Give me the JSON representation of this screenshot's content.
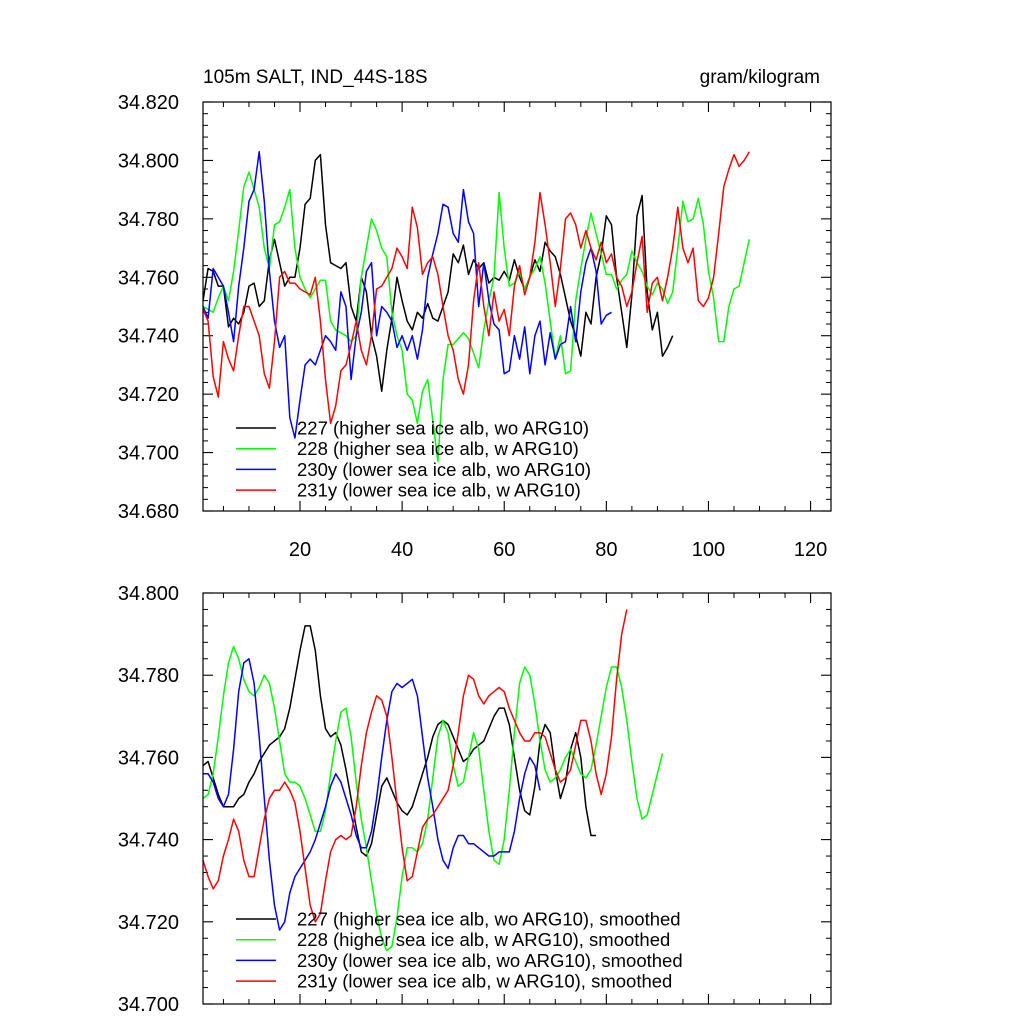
{
  "chart_data": [
    {
      "type": "line",
      "title": "105m SALT, IND_44S-18S",
      "units": "gram/kilogram",
      "xlim": [
        1,
        124
      ],
      "ylim": [
        34.68,
        34.82
      ],
      "xticks": [
        20,
        40,
        60,
        80,
        100,
        120
      ],
      "yticks": [
        34.68,
        34.7,
        34.72,
        34.74,
        34.76,
        34.78,
        34.8,
        34.82
      ],
      "x_tick_labels": [
        "20",
        "40",
        "60",
        "80",
        "100",
        "120"
      ],
      "y_tick_labels": [
        "34.680",
        "34.700",
        "34.720",
        "34.740",
        "34.760",
        "34.780",
        "34.800",
        "34.820"
      ],
      "series": [
        {
          "name": "227 (higher sea ice alb, wo ARG10)",
          "color": "#000000",
          "x_start": 1,
          "values": [
            34.752,
            34.763,
            34.762,
            34.757,
            34.757,
            34.743,
            34.746,
            34.744,
            34.748,
            34.757,
            34.758,
            34.75,
            34.752,
            34.766,
            34.773,
            34.765,
            34.757,
            34.76,
            34.76,
            34.77,
            34.785,
            34.787,
            34.8,
            34.802,
            34.778,
            34.765,
            34.764,
            34.763,
            34.765,
            34.75,
            34.745,
            34.76,
            34.755,
            34.74,
            34.733,
            34.721,
            34.735,
            34.746,
            34.76,
            34.752,
            34.745,
            34.742,
            34.748,
            34.746,
            34.751,
            34.746,
            34.745,
            34.75,
            34.755,
            34.768,
            34.765,
            34.771,
            34.761,
            34.766,
            34.763,
            34.765,
            34.758,
            34.76,
            34.759,
            34.762,
            34.759,
            34.766,
            34.76,
            34.756,
            34.76,
            34.766,
            34.762,
            34.772,
            34.769,
            34.767,
            34.761,
            34.753,
            34.745,
            34.74,
            34.733,
            34.748,
            34.744,
            34.76,
            34.768,
            34.781,
            34.778,
            34.76,
            34.748,
            34.736,
            34.754,
            34.781,
            34.788,
            34.755,
            34.742,
            34.748,
            34.733,
            34.736,
            34.74
          ]
        },
        {
          "name": "228 (higher sea ice alb, w ARG10)",
          "color": "#00ff00",
          "x_start": 1,
          "values": [
            34.75,
            34.749,
            34.748,
            34.753,
            34.757,
            34.752,
            34.762,
            34.776,
            34.791,
            34.796,
            34.79,
            34.784,
            34.77,
            34.763,
            34.778,
            34.779,
            34.784,
            34.79,
            34.77,
            34.76,
            34.756,
            34.753,
            34.756,
            34.759,
            34.759,
            34.745,
            34.742,
            34.741,
            34.74,
            34.738,
            34.74,
            34.76,
            34.77,
            34.78,
            34.776,
            34.77,
            34.767,
            34.748,
            34.74,
            34.735,
            34.72,
            34.718,
            34.71,
            34.721,
            34.725,
            34.711,
            34.697,
            34.725,
            34.737,
            34.737,
            34.739,
            34.741,
            34.739,
            34.734,
            34.729,
            34.742,
            34.752,
            34.76,
            34.789,
            34.77,
            34.757,
            34.758,
            34.762,
            34.756,
            34.76,
            34.763,
            34.767,
            34.758,
            34.745,
            34.732,
            34.74,
            34.727,
            34.728,
            34.752,
            34.763,
            34.773,
            34.782,
            34.775,
            34.768,
            34.761,
            34.761,
            34.756,
            34.759,
            34.761,
            34.769,
            34.765,
            34.762,
            34.757,
            34.754,
            34.758,
            34.756,
            34.751,
            34.755,
            34.77,
            34.786,
            34.779,
            34.78,
            34.787,
            34.778,
            34.762,
            34.753,
            34.738,
            34.738,
            34.75,
            34.756,
            34.757,
            34.765,
            34.773
          ]
        },
        {
          "name": "230y (lower sea ice alb, wo ARG10)",
          "color": "#0000ff",
          "x_start": 1,
          "values": [
            34.75,
            34.746,
            34.763,
            34.76,
            34.757,
            34.748,
            34.738,
            34.757,
            34.77,
            34.786,
            34.79,
            34.803,
            34.786,
            34.762,
            34.745,
            34.736,
            34.74,
            34.712,
            34.705,
            34.718,
            34.73,
            34.732,
            34.73,
            34.735,
            34.74,
            34.738,
            34.735,
            34.755,
            34.75,
            34.725,
            34.74,
            34.748,
            34.762,
            34.765,
            34.74,
            34.75,
            34.748,
            34.745,
            34.736,
            34.74,
            34.735,
            34.74,
            34.732,
            34.742,
            34.76,
            34.768,
            34.775,
            34.785,
            34.784,
            34.775,
            34.772,
            34.79,
            34.779,
            34.775,
            34.75,
            34.765,
            34.752,
            34.744,
            34.742,
            34.727,
            34.728,
            34.74,
            34.732,
            34.743,
            34.727,
            34.74,
            34.745,
            34.73,
            34.741,
            34.732,
            34.737,
            34.738,
            34.75,
            34.738,
            34.755,
            34.765,
            34.77,
            34.762,
            34.744,
            34.747,
            34.748
          ]
        },
        {
          "name": "231y (lower sea ice alb, w ARG10)",
          "color": "#ff0000",
          "x_start": 1,
          "values": [
            34.749,
            34.745,
            34.726,
            34.719,
            34.738,
            34.732,
            34.728,
            34.74,
            34.75,
            34.75,
            34.745,
            34.74,
            34.727,
            34.722,
            34.738,
            34.76,
            34.762,
            34.758,
            34.758,
            34.756,
            34.755,
            34.754,
            34.76,
            34.745,
            34.725,
            34.71,
            34.716,
            34.728,
            34.73,
            34.737,
            34.745,
            34.735,
            34.73,
            34.74,
            34.756,
            34.757,
            34.76,
            34.763,
            34.77,
            34.767,
            34.763,
            34.784,
            34.777,
            34.761,
            34.765,
            34.767,
            34.761,
            34.75,
            34.74,
            34.735,
            34.725,
            34.72,
            34.73,
            34.752,
            34.765,
            34.75,
            34.74,
            34.755,
            34.745,
            34.749,
            34.74,
            34.757,
            34.764,
            34.754,
            34.76,
            34.772,
            34.789,
            34.778,
            34.765,
            34.75,
            34.763,
            34.78,
            34.782,
            34.778,
            34.77,
            34.776,
            34.77,
            34.766,
            34.772,
            34.765,
            34.768,
            34.76,
            34.757,
            34.75,
            34.755,
            34.765,
            34.774,
            34.748,
            34.758,
            34.76,
            34.752,
            34.76,
            34.77,
            34.784,
            34.77,
            34.765,
            34.77,
            34.752,
            34.75,
            34.753,
            34.76,
            34.775,
            34.791,
            34.797,
            34.802,
            34.798,
            34.8,
            34.803
          ]
        }
      ]
    },
    {
      "type": "line",
      "xlim": [
        1,
        124
      ],
      "ylim": [
        34.7,
        34.8
      ],
      "xticks": [
        20,
        40,
        60,
        80,
        100,
        120
      ],
      "yticks": [
        34.7,
        34.72,
        34.74,
        34.76,
        34.78,
        34.8
      ],
      "y_tick_labels": [
        "34.700",
        "34.720",
        "34.740",
        "34.760",
        "34.780",
        "34.800"
      ],
      "series": [
        {
          "name": "227 (higher sea ice alb, wo ARG10), smoothed",
          "color": "#000000",
          "x_start": 1,
          "values": [
            34.758,
            34.759,
            34.755,
            34.751,
            34.748,
            34.748,
            34.748,
            34.75,
            34.751,
            34.754,
            34.756,
            34.759,
            34.761,
            34.763,
            34.764,
            34.765,
            34.767,
            34.772,
            34.779,
            34.786,
            34.792,
            34.792,
            34.786,
            34.775,
            34.767,
            34.765,
            34.766,
            34.763,
            34.757,
            34.75,
            34.743,
            34.737,
            34.736,
            34.739,
            34.746,
            34.753,
            34.755,
            34.752,
            34.749,
            34.747,
            34.746,
            34.748,
            34.752,
            34.756,
            34.76,
            34.765,
            34.768,
            34.769,
            34.768,
            34.765,
            34.762,
            34.759,
            34.76,
            34.762,
            34.763,
            34.764,
            34.767,
            34.77,
            34.772,
            34.772,
            34.768,
            34.76,
            34.752,
            34.747,
            34.746,
            34.753,
            34.764,
            34.768,
            34.766,
            34.757,
            34.75,
            34.754,
            34.762,
            34.766,
            34.76,
            34.748,
            34.741,
            34.741
          ]
        },
        {
          "name": "228 (higher sea ice alb, w ARG10), smoothed",
          "color": "#00ff00",
          "x_start": 1,
          "values": [
            34.75,
            34.751,
            34.756,
            34.765,
            34.775,
            34.783,
            34.787,
            34.784,
            34.779,
            34.776,
            34.775,
            34.777,
            34.78,
            34.778,
            34.772,
            34.764,
            34.756,
            34.754,
            34.754,
            34.753,
            34.75,
            34.746,
            34.742,
            34.742,
            34.747,
            34.756,
            34.764,
            34.771,
            34.772,
            34.765,
            34.754,
            34.745,
            34.738,
            34.73,
            34.722,
            34.716,
            34.713,
            34.714,
            34.721,
            34.731,
            34.738,
            34.738,
            34.737,
            34.739,
            34.745,
            34.755,
            34.765,
            34.769,
            34.766,
            34.758,
            34.753,
            34.754,
            34.76,
            34.766,
            34.762,
            34.752,
            34.742,
            34.735,
            34.734,
            34.74,
            34.752,
            34.766,
            34.778,
            34.782,
            34.78,
            34.773,
            34.764,
            34.757,
            34.754,
            34.755,
            34.757,
            34.76,
            34.762,
            34.759,
            34.756,
            34.755,
            34.757,
            34.763,
            34.77,
            34.777,
            34.782,
            34.782,
            34.777,
            34.769,
            34.759,
            34.75,
            34.745,
            34.746,
            34.751,
            34.756,
            34.761
          ]
        },
        {
          "name": "230y (lower sea ice alb, wo ARG10), smoothed",
          "color": "#0000ff",
          "x_start": 1,
          "values": [
            34.756,
            34.756,
            34.754,
            34.75,
            34.748,
            34.751,
            34.762,
            34.776,
            34.783,
            34.784,
            34.778,
            34.765,
            34.75,
            34.735,
            34.724,
            34.718,
            34.72,
            34.727,
            34.731,
            34.733,
            34.735,
            34.737,
            34.74,
            34.744,
            34.748,
            34.753,
            34.756,
            34.754,
            34.75,
            34.746,
            34.741,
            34.738,
            34.738,
            34.742,
            34.75,
            34.76,
            34.769,
            34.776,
            34.778,
            34.777,
            34.778,
            34.779,
            34.775,
            34.765,
            34.755,
            34.748,
            34.74,
            34.735,
            34.733,
            34.738,
            34.741,
            34.741,
            34.739,
            34.739,
            34.738,
            34.737,
            34.736,
            34.736,
            34.737,
            34.737,
            34.737,
            34.742,
            34.75,
            34.756,
            34.76,
            34.758,
            34.752
          ]
        },
        {
          "name": "231y (lower sea ice alb, w ARG10), smoothed",
          "color": "#ff0000",
          "x_start": 1,
          "values": [
            34.735,
            34.731,
            34.728,
            34.73,
            34.736,
            34.74,
            34.745,
            34.742,
            34.735,
            34.731,
            34.731,
            34.738,
            34.745,
            34.75,
            34.752,
            34.752,
            34.754,
            34.752,
            34.749,
            34.742,
            34.733,
            34.724,
            34.72,
            34.722,
            34.73,
            34.737,
            34.74,
            34.741,
            34.74,
            34.741,
            34.748,
            34.758,
            34.766,
            34.771,
            34.775,
            34.774,
            34.77,
            34.76,
            34.749,
            34.738,
            34.73,
            34.731,
            34.737,
            34.743,
            34.745,
            34.746,
            34.748,
            34.75,
            34.752,
            34.758,
            34.766,
            34.775,
            34.78,
            34.779,
            34.775,
            34.773,
            34.775,
            34.776,
            34.777,
            34.776,
            34.772,
            34.769,
            34.766,
            34.764,
            34.764,
            34.766,
            34.766,
            34.765,
            34.761,
            34.757,
            34.754,
            34.755,
            34.757,
            34.763,
            34.769,
            34.769,
            34.764,
            34.756,
            34.751,
            34.756,
            34.765,
            34.779,
            34.79,
            34.796
          ]
        }
      ]
    }
  ]
}
